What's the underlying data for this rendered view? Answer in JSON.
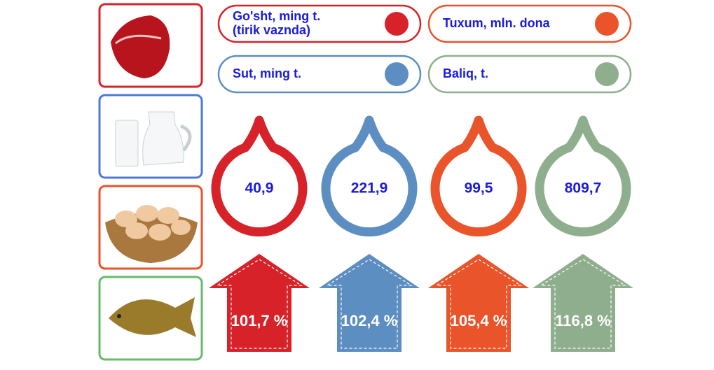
{
  "legend": [
    {
      "lines": [
        "Go'sht, ming t.",
        "(tirik vaznda)"
      ],
      "color": "#d7222a"
    },
    {
      "lines": [
        "Tuxum, mln. dona"
      ],
      "color": "#e9542a"
    },
    {
      "lines": [
        "Sut, ming t."
      ],
      "color": "#5c8ec2"
    },
    {
      "lines": [
        "Baliq, t."
      ],
      "color": "#8fae8d"
    }
  ],
  "indicators": [
    {
      "value": "40,9",
      "change": "101,7 %",
      "color": "#d7222a"
    },
    {
      "value": "221,9",
      "change": "102,4 %",
      "color": "#5c8ec2"
    },
    {
      "value": "99,5",
      "change": "105,4 %",
      "color": "#e9542a"
    },
    {
      "value": "809,7",
      "change": "116,8 %",
      "color": "#8fae8d"
    }
  ]
}
